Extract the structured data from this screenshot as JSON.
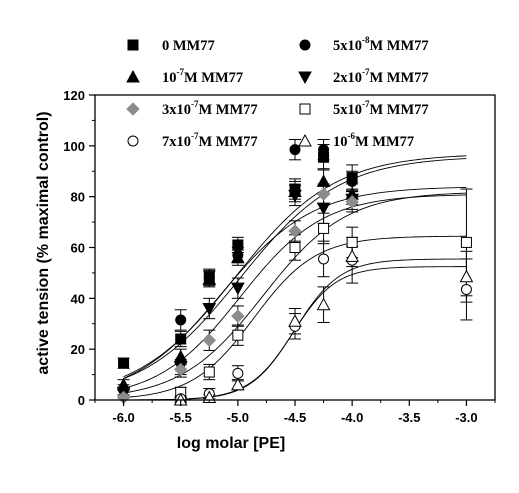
{
  "chart_data": {
    "type": "scatter",
    "title": "",
    "xlabel": "log molar [PE]",
    "ylabel": "active tension (% maximal control)",
    "xlim": [
      -6.25,
      -2.75
    ],
    "ylim": [
      0,
      120
    ],
    "xticks": [
      "-6.0",
      "-5.5",
      "-5.0",
      "-4.5",
      "-4.0",
      "-3.5",
      "-3.0"
    ],
    "yticks": [
      "0",
      "20",
      "40",
      "60",
      "80",
      "100",
      "120"
    ],
    "grid": false,
    "legend_position": "top",
    "series": [
      {
        "name_parts": [
          "0 MM77"
        ],
        "marker": "filled-square",
        "points": [
          {
            "x": -6.0,
            "y": 14.5,
            "err": 2
          },
          {
            "x": -5.5,
            "y": 24,
            "err": 3
          },
          {
            "x": -5.25,
            "y": 48.5,
            "err": 3
          },
          {
            "x": -5.0,
            "y": 61,
            "err": 3
          },
          {
            "x": -4.5,
            "y": 83,
            "err": 4
          },
          {
            "x": -4.25,
            "y": 95.5,
            "err": 5
          },
          {
            "x": -4.0,
            "y": 87.5,
            "err": 5
          }
        ],
        "fit": {
          "bottom": 0,
          "top": 97,
          "logec50": -5.02,
          "hill": 1.0
        }
      },
      {
        "name_parts": [
          "5x10",
          "-8",
          "M MM77"
        ],
        "marker": "filled-circle",
        "points": [
          {
            "x": -6.0,
            "y": 4,
            "err": 2
          },
          {
            "x": -5.5,
            "y": 31.5,
            "err": 4
          },
          {
            "x": -5.25,
            "y": 48,
            "err": 3
          },
          {
            "x": -5.0,
            "y": 57,
            "err": 3
          },
          {
            "x": -4.5,
            "y": 98.5,
            "err": 4
          },
          {
            "x": -4.25,
            "y": 98.5,
            "err": 4
          },
          {
            "x": -4.0,
            "y": 86,
            "err": 4
          }
        ],
        "fit": {
          "bottom": 0,
          "top": 96,
          "logec50": -4.98,
          "hill": 1.0
        }
      },
      {
        "name_parts": [
          "10",
          "-7",
          "M MM77"
        ],
        "marker": "filled-triangle-up",
        "points": [
          {
            "x": -6.0,
            "y": 6,
            "err": 2
          },
          {
            "x": -5.5,
            "y": 17,
            "err": 3
          },
          {
            "x": -5.25,
            "y": 47.5,
            "err": 3
          },
          {
            "x": -5.0,
            "y": 56,
            "err": 3
          },
          {
            "x": -4.5,
            "y": 82,
            "err": 4
          },
          {
            "x": -4.25,
            "y": 86,
            "err": 5
          },
          {
            "x": -4.0,
            "y": 81,
            "err": 4
          }
        ],
        "fit": {
          "bottom": 0,
          "top": 84,
          "logec50": -5.14,
          "hill": 1.1
        }
      },
      {
        "name_parts": [
          "2x10",
          "-7",
          "M MM77"
        ],
        "marker": "filled-triangle-down",
        "points": [
          {
            "x": -6.0,
            "y": 3,
            "err": 2
          },
          {
            "x": -5.5,
            "y": 13,
            "err": 3
          },
          {
            "x": -5.25,
            "y": 36,
            "err": 4
          },
          {
            "x": -5.0,
            "y": 44,
            "err": 4
          },
          {
            "x": -4.5,
            "y": 80.5,
            "err": 4
          },
          {
            "x": -4.25,
            "y": 75.5,
            "err": 6
          },
          {
            "x": -4.0,
            "y": 79,
            "err": 4
          }
        ],
        "fit": {
          "bottom": 0,
          "top": 81,
          "logec50": -4.98,
          "hill": 1.2
        }
      },
      {
        "name_parts": [
          "3x10",
          "-7",
          "M MM77"
        ],
        "marker": "filled-diamond",
        "points": [
          {
            "x": -6.0,
            "y": 1,
            "err": 1
          },
          {
            "x": -5.5,
            "y": 12,
            "err": 3
          },
          {
            "x": -5.25,
            "y": 23.5,
            "err": 4
          },
          {
            "x": -5.0,
            "y": 33,
            "err": 4
          },
          {
            "x": -4.5,
            "y": 66.5,
            "err": 4
          },
          {
            "x": -4.25,
            "y": 81,
            "err": 4
          },
          {
            "x": -4.0,
            "y": 78,
            "err": 4
          }
        ],
        "fit": {
          "bottom": 0,
          "top": 82,
          "logec50": -4.78,
          "hill": 1.2
        }
      },
      {
        "name_parts": [
          "5x10",
          "-7",
          "M MM77"
        ],
        "marker": "open-square",
        "points": [
          {
            "x": -5.5,
            "y": 3,
            "err": 2
          },
          {
            "x": -5.25,
            "y": 11,
            "err": 3
          },
          {
            "x": -5.0,
            "y": 25.5,
            "err": 4
          },
          {
            "x": -4.5,
            "y": 60,
            "err": 5
          },
          {
            "x": -4.25,
            "y": 67.5,
            "err": 6
          },
          {
            "x": -4.0,
            "y": 62,
            "err": 6
          },
          {
            "x": -3.0,
            "y": 62,
            "err": 21
          }
        ],
        "fit": {
          "bottom": 0,
          "top": 64.5,
          "logec50": -4.86,
          "hill": 1.6
        }
      },
      {
        "name_parts": [
          "7x10",
          "-7",
          "M MM77"
        ],
        "marker": "open-circle",
        "points": [
          {
            "x": -5.5,
            "y": 0.5,
            "err": 1
          },
          {
            "x": -5.25,
            "y": 2.5,
            "err": 2
          },
          {
            "x": -5.0,
            "y": 10.5,
            "err": 3
          },
          {
            "x": -4.5,
            "y": 29,
            "err": 5
          },
          {
            "x": -4.25,
            "y": 55.5,
            "err": 7
          },
          {
            "x": -4.0,
            "y": 55,
            "err": 9
          },
          {
            "x": -3.0,
            "y": 43.5,
            "err": 12
          }
        ],
        "fit": {
          "bottom": 0,
          "top": 55.5,
          "logec50": -4.5,
          "hill": 2.2
        }
      },
      {
        "name_parts": [
          "10",
          "-6",
          "M MM77"
        ],
        "marker": "open-triangle-up",
        "points": [
          {
            "x": -5.5,
            "y": 0,
            "err": 1
          },
          {
            "x": -5.25,
            "y": 1,
            "err": 1
          },
          {
            "x": -5.0,
            "y": 6,
            "err": 2
          },
          {
            "x": -4.5,
            "y": 31,
            "err": 5
          },
          {
            "x": -4.25,
            "y": 37.5,
            "err": 7
          },
          {
            "x": -4.0,
            "y": 56.5,
            "err": 4
          },
          {
            "x": -3.0,
            "y": 48.5,
            "err": 10
          }
        ],
        "fit": {
          "bottom": 0,
          "top": 52.5,
          "logec50": -4.52,
          "hill": 2.3
        }
      }
    ]
  }
}
